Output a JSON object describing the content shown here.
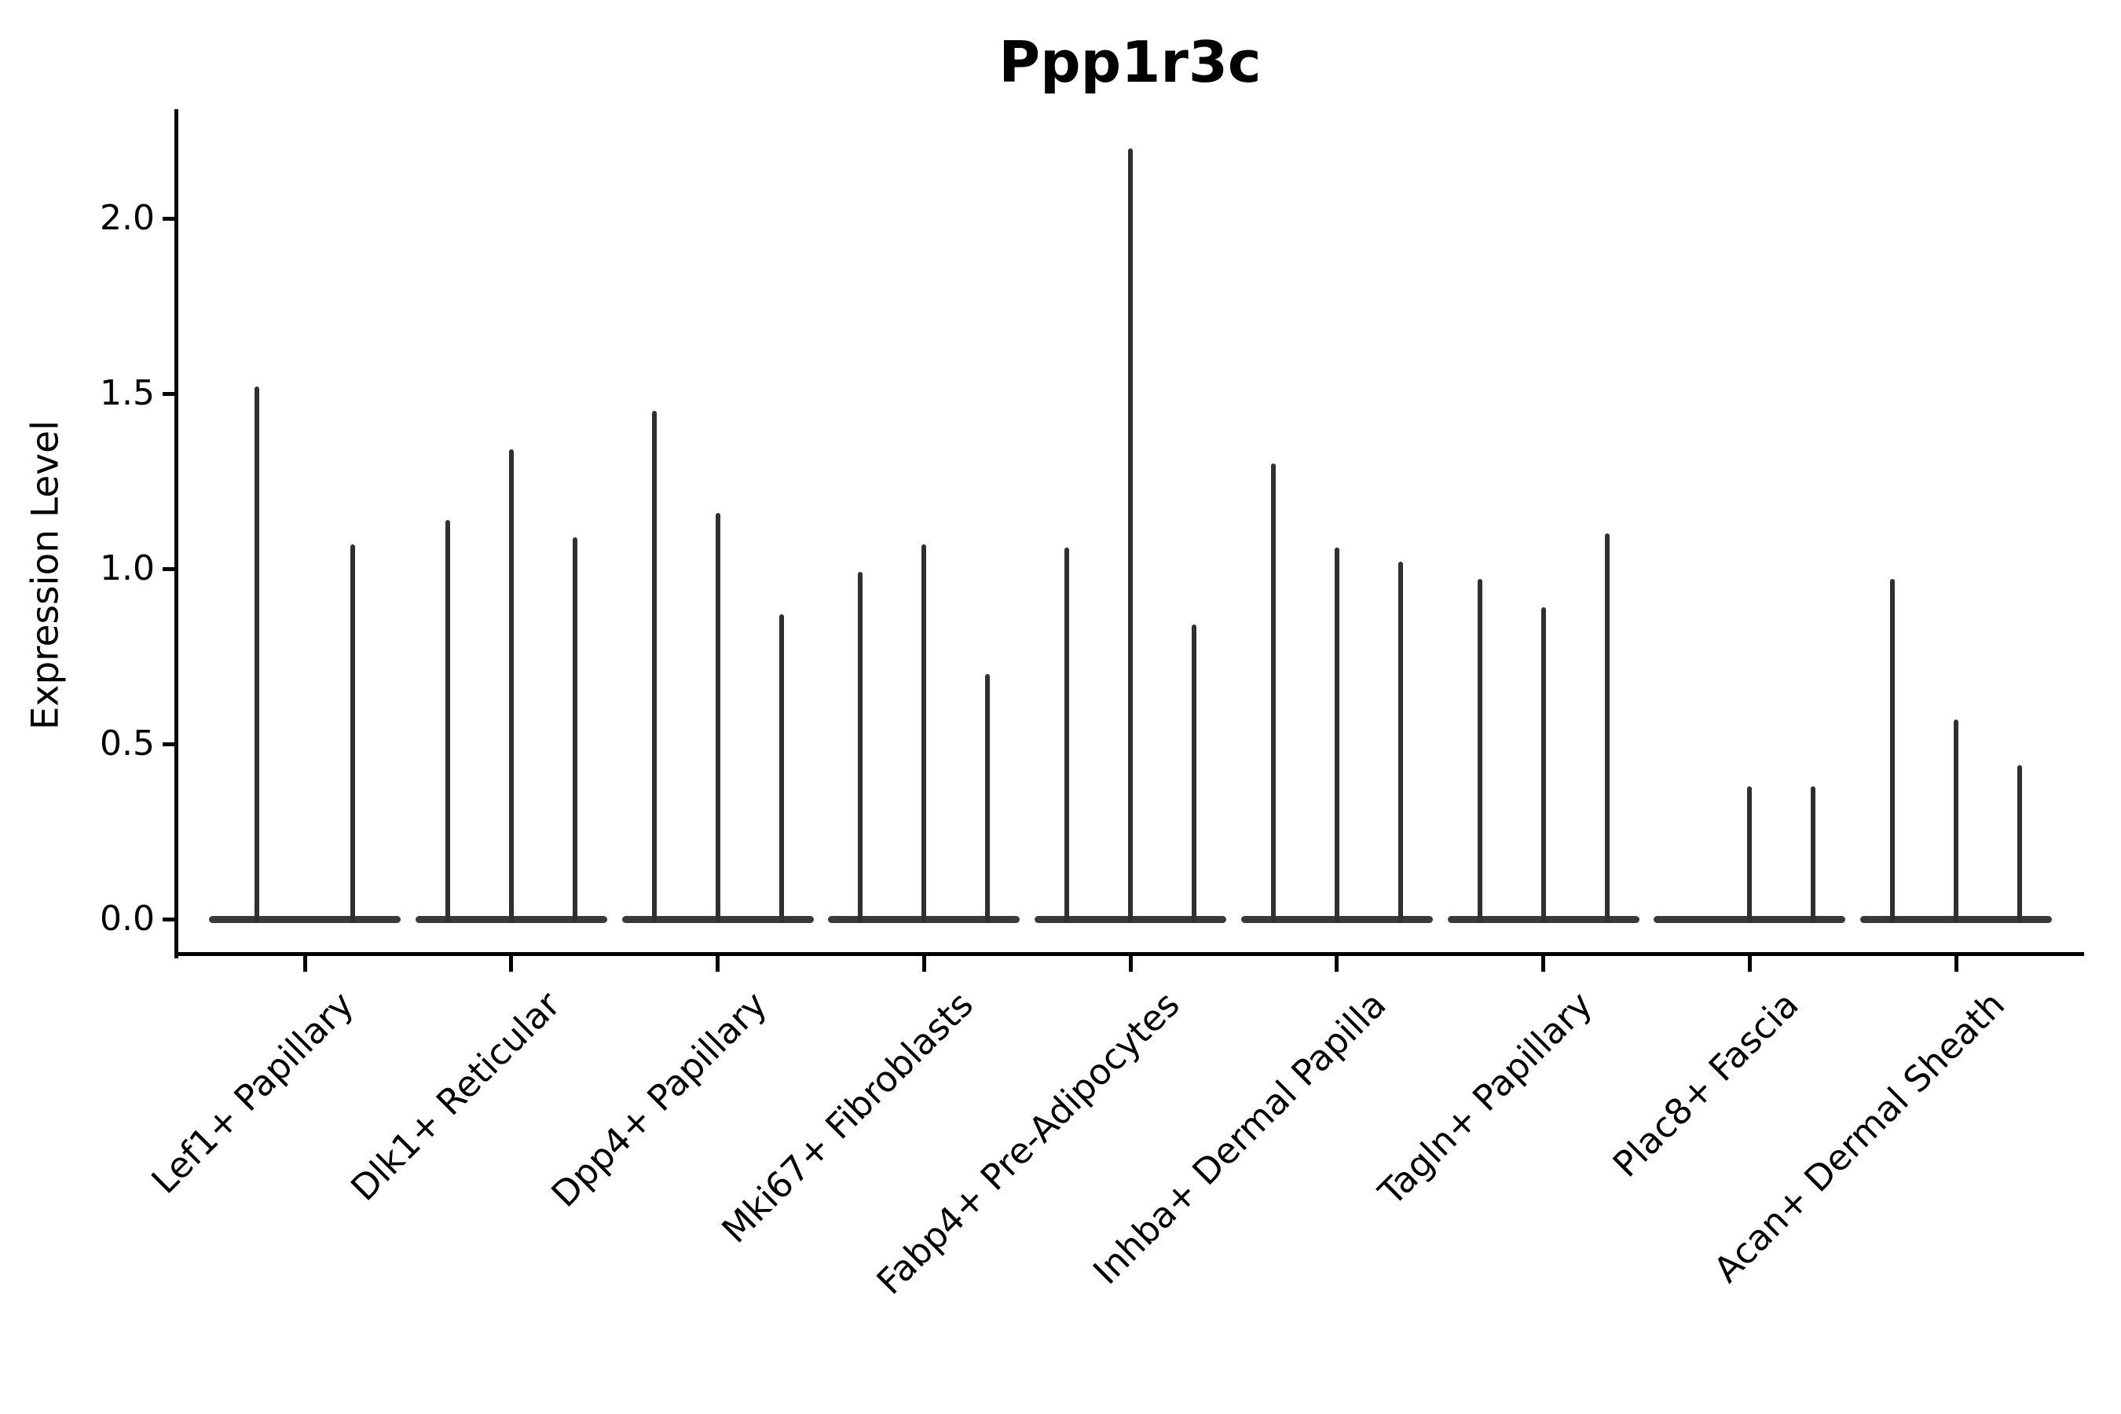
{
  "chart_data": {
    "type": "violin",
    "title": "Ppp1r3c",
    "ylabel": "Expression Level",
    "xlabel": "",
    "ytick_labels": [
      "0.0",
      "0.5",
      "1.0",
      "1.5",
      "2.0"
    ],
    "ylim": [
      -0.09,
      2.32
    ],
    "grid": false,
    "legend": null,
    "description": "Single-cell expression violin plot; each category shows 2-3 very thin spike-shaped violins rising from a flat base at 0. Values are the top (maximum) of each spike in Expression Level units; 0 means a flat violin with no spike.",
    "groups": [
      {
        "category": "Lef1+ Papillary",
        "violins": [
          1.52,
          1.07
        ]
      },
      {
        "category": "Dlk1+ Reticular",
        "violins": [
          1.14,
          1.34,
          1.09
        ]
      },
      {
        "category": "Dpp4+ Papillary",
        "violins": [
          1.45,
          1.16,
          0.87
        ]
      },
      {
        "category": "Mki67+ Fibroblasts",
        "violins": [
          0.99,
          1.07,
          0.7
        ]
      },
      {
        "category": "Fabp4+ Pre-Adipocytes",
        "violins": [
          1.06,
          2.2,
          0.84
        ]
      },
      {
        "category": "Inhba+ Dermal Papilla",
        "violins": [
          1.3,
          1.06,
          1.02
        ]
      },
      {
        "category": "Tagln+ Papillary",
        "violins": [
          0.97,
          0.89,
          1.1
        ]
      },
      {
        "category": "Plac8+ Fascia",
        "violins": [
          0,
          0.38,
          0.38
        ]
      },
      {
        "category": "Acan+ Dermal Sheath",
        "violins": [
          0.97,
          0.57,
          0.44
        ]
      }
    ],
    "colors": {
      "violin": "#303030",
      "baseline": "#3a3a3a",
      "axis": "#000000",
      "text": "#000000",
      "background": "#ffffff"
    }
  }
}
